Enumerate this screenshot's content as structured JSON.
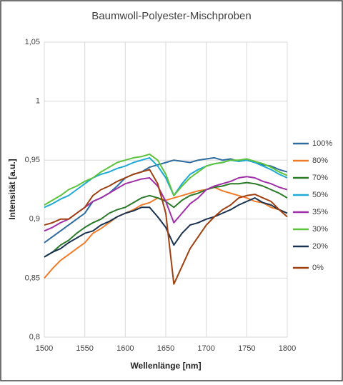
{
  "chart_data": {
    "type": "line",
    "title": "Baumwoll-Polyester-Mischproben",
    "x_label": "Wellenlänge [nm]",
    "y_label": "Intensität [a.u.]",
    "x": [
      1500,
      1510,
      1520,
      1530,
      1540,
      1550,
      1560,
      1570,
      1580,
      1590,
      1600,
      1610,
      1620,
      1630,
      1640,
      1650,
      1660,
      1670,
      1680,
      1690,
      1700,
      1710,
      1720,
      1730,
      1740,
      1750,
      1760,
      1770,
      1780,
      1790,
      1800
    ],
    "xlim": [
      1500,
      1800
    ],
    "xticks": [
      1500,
      1550,
      1600,
      1650,
      1700,
      1750,
      1800
    ],
    "ylim": [
      0.8,
      1.05
    ],
    "yticks": [
      {
        "value": 0.8,
        "label": "0,8"
      },
      {
        "value": 0.85,
        "label": "0,85"
      },
      {
        "value": 0.9,
        "label": "0,9"
      },
      {
        "value": 0.95,
        "label": "0,95"
      },
      1,
      {
        "value": 1.05,
        "label": "1,05"
      }
    ],
    "grid": true,
    "legend": "right",
    "series": [
      {
        "name": "100%",
        "color": "#2e6b9e",
        "values": [
          0.88,
          0.885,
          0.89,
          0.895,
          0.9,
          0.905,
          0.915,
          0.918,
          0.922,
          0.928,
          0.935,
          0.938,
          0.94,
          0.944,
          0.946,
          0.948,
          0.95,
          0.949,
          0.948,
          0.95,
          0.951,
          0.952,
          0.95,
          0.951,
          0.949,
          0.95,
          0.948,
          0.946,
          0.945,
          0.942,
          0.94
        ]
      },
      {
        "name": "80%",
        "color": "#f07c2a",
        "values": [
          0.85,
          0.858,
          0.865,
          0.87,
          0.875,
          0.88,
          0.888,
          0.892,
          0.897,
          0.902,
          0.905,
          0.908,
          0.912,
          0.914,
          0.918,
          0.916,
          0.918,
          0.92,
          0.922,
          0.924,
          0.925,
          0.927,
          0.924,
          0.922,
          0.92,
          0.918,
          0.915,
          0.914,
          0.91,
          0.908,
          0.905
        ]
      },
      {
        "name": "70%",
        "color": "#2a7a2a",
        "values": [
          0.868,
          0.872,
          0.878,
          0.882,
          0.888,
          0.893,
          0.897,
          0.9,
          0.905,
          0.908,
          0.91,
          0.914,
          0.918,
          0.92,
          0.918,
          0.915,
          0.91,
          0.916,
          0.92,
          0.922,
          0.925,
          0.927,
          0.928,
          0.93,
          0.93,
          0.931,
          0.93,
          0.928,
          0.925,
          0.922,
          0.918
        ]
      },
      {
        "name": "50%",
        "color": "#1fa9d6",
        "values": [
          0.91,
          0.913,
          0.917,
          0.92,
          0.925,
          0.93,
          0.935,
          0.938,
          0.94,
          0.943,
          0.945,
          0.948,
          0.95,
          0.952,
          0.945,
          0.935,
          0.92,
          0.93,
          0.938,
          0.942,
          0.945,
          0.947,
          0.948,
          0.95,
          0.949,
          0.95,
          0.948,
          0.945,
          0.942,
          0.938,
          0.935
        ]
      },
      {
        "name": "35%",
        "color": "#a030a8",
        "values": [
          0.89,
          0.893,
          0.897,
          0.9,
          0.905,
          0.91,
          0.915,
          0.918,
          0.922,
          0.926,
          0.93,
          0.932,
          0.934,
          0.935,
          0.928,
          0.915,
          0.897,
          0.905,
          0.913,
          0.918,
          0.925,
          0.928,
          0.93,
          0.932,
          0.935,
          0.936,
          0.935,
          0.932,
          0.93,
          0.927,
          0.925
        ]
      },
      {
        "name": "30%",
        "color": "#5cc33a",
        "values": [
          0.912,
          0.916,
          0.92,
          0.925,
          0.928,
          0.932,
          0.935,
          0.94,
          0.944,
          0.948,
          0.95,
          0.952,
          0.953,
          0.955,
          0.95,
          0.938,
          0.92,
          0.928,
          0.935,
          0.94,
          0.945,
          0.947,
          0.948,
          0.95,
          0.95,
          0.951,
          0.949,
          0.947,
          0.944,
          0.94,
          0.937
        ]
      },
      {
        "name": "20%",
        "color": "#1a3350",
        "values": [
          0.868,
          0.872,
          0.875,
          0.88,
          0.884,
          0.888,
          0.89,
          0.895,
          0.898,
          0.902,
          0.905,
          0.907,
          0.91,
          0.91,
          0.902,
          0.893,
          0.878,
          0.888,
          0.895,
          0.897,
          0.9,
          0.902,
          0.905,
          0.908,
          0.912,
          0.915,
          0.918,
          0.914,
          0.912,
          0.908,
          0.905
        ]
      },
      {
        "name": "0%",
        "color": "#a04010",
        "values": [
          0.895,
          0.897,
          0.9,
          0.9,
          0.905,
          0.91,
          0.92,
          0.925,
          0.928,
          0.932,
          0.935,
          0.938,
          0.94,
          0.942,
          0.93,
          0.905,
          0.845,
          0.86,
          0.875,
          0.885,
          0.895,
          0.902,
          0.908,
          0.912,
          0.918,
          0.92,
          0.921,
          0.918,
          0.915,
          0.908,
          0.902
        ]
      }
    ]
  }
}
